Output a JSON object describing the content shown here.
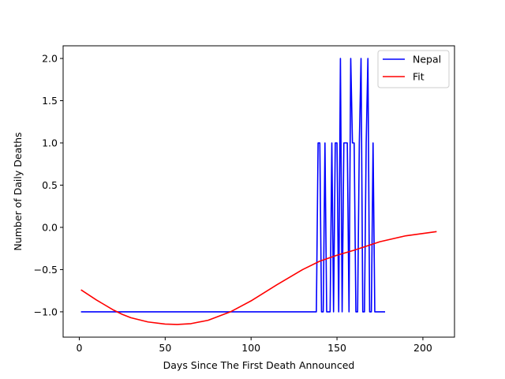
{
  "chart_data": {
    "type": "line",
    "xlabel": "Days Since The First Death Announced",
    "ylabel": "Number of Daily Deaths",
    "xlim": [
      -9.4,
      218.4
    ],
    "ylim": [
      -1.3,
      2.15
    ],
    "xticks": [
      0,
      50,
      100,
      150,
      200
    ],
    "yticks": [
      -1.0,
      -0.5,
      0.0,
      0.5,
      1.0,
      1.5,
      2.0
    ],
    "xtick_labels": [
      "0",
      "50",
      "100",
      "150",
      "200"
    ],
    "ytick_labels": [
      "−1.0",
      "−0.5",
      "0.0",
      "0.5",
      "1.0",
      "1.5",
      "2.0"
    ],
    "grid": false,
    "legend_position": "top-right",
    "series": [
      {
        "name": "Nepal",
        "color": "#0000ff",
        "x": [
          1,
          138,
          139,
          140,
          141,
          142,
          143,
          144,
          145,
          146,
          147,
          148,
          149,
          150,
          151,
          152,
          153,
          154,
          155,
          156,
          157,
          158,
          159,
          160,
          161,
          162,
          163,
          164,
          165,
          166,
          167,
          168,
          169,
          170,
          171,
          172,
          173,
          174,
          175,
          176,
          177,
          178
        ],
        "values": [
          -1,
          -1,
          1,
          1,
          -1,
          -1,
          1,
          -1,
          -1,
          -1,
          1,
          -1,
          1,
          1,
          -1,
          2,
          -1,
          1,
          1,
          1,
          -1,
          2,
          1,
          1,
          -1,
          -1,
          1,
          2,
          -1,
          -1,
          1,
          2,
          -1,
          -1,
          1,
          -1,
          -1,
          -1,
          -1,
          -1,
          -1,
          -1
        ]
      },
      {
        "name": "Fit",
        "color": "#ff0000",
        "x": [
          1,
          10,
          20,
          25,
          30,
          40,
          50,
          57,
          65,
          75,
          88,
          100,
          115,
          130,
          140,
          150,
          160,
          175,
          190,
          208
        ],
        "values": [
          -0.74,
          -0.86,
          -0.98,
          -1.03,
          -1.07,
          -1.12,
          -1.145,
          -1.15,
          -1.14,
          -1.1,
          -1.0,
          -0.87,
          -0.68,
          -0.5,
          -0.4,
          -0.33,
          -0.27,
          -0.17,
          -0.1,
          -0.05
        ]
      }
    ]
  }
}
